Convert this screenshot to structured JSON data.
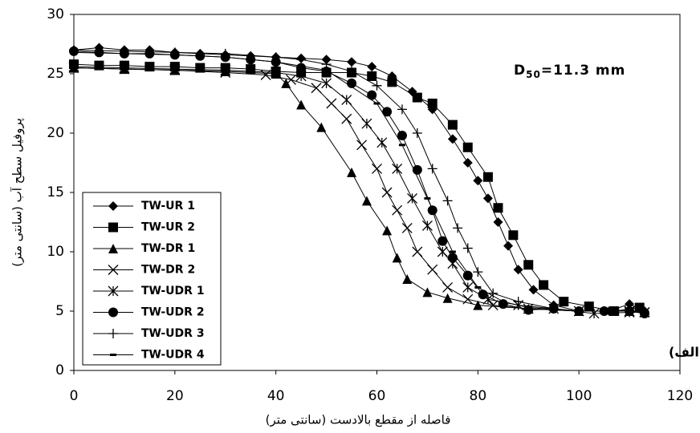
{
  "chart_data": {
    "type": "line",
    "x_label": "فاصله از مقطع بالادست (سانتی متر)",
    "y_label": "پروفیل سطح آب (سانتی متر)",
    "annotation": [
      "D",
      "50",
      "=11.3 mm"
    ],
    "panel_label": "(الف)",
    "xlim": [
      0,
      120
    ],
    "xticks": [
      0,
      20,
      40,
      60,
      80,
      100,
      120
    ],
    "ylim": [
      0,
      30
    ],
    "yticks": [
      0,
      5,
      10,
      15,
      20,
      25,
      30
    ],
    "grid": false,
    "legend": "lower left",
    "series": [
      {
        "name": "TW-UR 1",
        "color": "#000000",
        "marker": "diamond",
        "x": [
          0,
          5,
          10,
          15,
          20,
          25,
          30,
          35,
          40,
          45,
          50,
          55,
          59,
          63,
          67,
          71,
          75,
          78,
          80,
          82,
          84,
          86,
          88,
          91,
          95,
          100,
          106,
          110,
          113
        ],
        "values": [
          27,
          27.2,
          27,
          27,
          26.8,
          26.7,
          26.6,
          26.5,
          26.4,
          26.3,
          26.2,
          26,
          25.6,
          24.8,
          23.5,
          22,
          19.5,
          17.5,
          16,
          14.5,
          12.5,
          10.5,
          8.5,
          6.8,
          5.5,
          5,
          5,
          5.6,
          5
        ]
      },
      {
        "name": "TW-UR 2",
        "color": "#000000",
        "marker": "square",
        "x": [
          0,
          5,
          10,
          15,
          20,
          25,
          30,
          35,
          40,
          45,
          50,
          55,
          59,
          63,
          68,
          71,
          75,
          78,
          82,
          84,
          87,
          90,
          93,
          97,
          102,
          107,
          112
        ],
        "values": [
          25.8,
          25.7,
          25.7,
          25.6,
          25.6,
          25.5,
          25.5,
          25.4,
          25.2,
          25.1,
          25.1,
          25.1,
          24.8,
          24.3,
          23,
          22.5,
          20.7,
          18.8,
          16.3,
          13.7,
          11.4,
          8.9,
          7.2,
          5.8,
          5.4,
          5,
          5.3
        ]
      },
      {
        "name": "TW-DR 1",
        "color": "#000000",
        "marker": "triangle",
        "x": [
          0,
          10,
          20,
          30,
          40,
          42,
          45,
          49,
          55,
          58,
          62,
          64,
          66,
          70,
          74,
          80,
          90,
          100,
          110,
          113
        ],
        "values": [
          25.5,
          25.4,
          25.3,
          25.2,
          25,
          24.2,
          22.4,
          20.5,
          16.7,
          14.3,
          11.8,
          9.5,
          7.7,
          6.6,
          6.1,
          5.5,
          5.2,
          5,
          5,
          4.9
        ]
      },
      {
        "name": "TW-DR 2",
        "color": "#000000",
        "marker": "x",
        "x": [
          0,
          10,
          20,
          30,
          38,
          43,
          48,
          51,
          54,
          57,
          60,
          62,
          64,
          66,
          68,
          71,
          74,
          78,
          83,
          90,
          100,
          110,
          113
        ],
        "values": [
          25.5,
          25.4,
          25.3,
          25.1,
          24.9,
          24.5,
          23.8,
          22.5,
          21.2,
          19,
          17,
          15,
          13.5,
          12,
          10,
          8.5,
          7,
          6,
          5.5,
          5.2,
          5,
          5,
          4.9
        ]
      },
      {
        "name": "TW-UDR 1",
        "color": "#000000",
        "marker": "asterisk",
        "x": [
          0,
          10,
          20,
          30,
          40,
          45,
          50,
          54,
          58,
          61,
          64,
          67,
          70,
          73,
          75,
          78,
          82,
          88,
          95,
          103,
          110,
          113
        ],
        "values": [
          25.6,
          25.5,
          25.4,
          25.3,
          25.1,
          24.8,
          24.2,
          22.8,
          20.8,
          19.2,
          17,
          14.5,
          12.2,
          10,
          9,
          7,
          6,
          5.5,
          5.2,
          4.8,
          4.9,
          4.9
        ]
      },
      {
        "name": "TW-UDR 2",
        "color": "#000000",
        "marker": "circle",
        "x": [
          0,
          5,
          10,
          15,
          20,
          25,
          30,
          35,
          40,
          45,
          50,
          55,
          59,
          62,
          65,
          68,
          71,
          73,
          75,
          78,
          81,
          85,
          90,
          95,
          100,
          105,
          110,
          113
        ],
        "values": [
          26.9,
          26.8,
          26.7,
          26.7,
          26.6,
          26.5,
          26.4,
          26.2,
          26,
          25.5,
          25.2,
          24.2,
          23.2,
          21.8,
          19.8,
          16.9,
          13.5,
          10.9,
          9.5,
          8,
          6.4,
          5.6,
          5.1,
          5.2,
          5,
          5,
          5,
          4.8
        ]
      },
      {
        "name": "TW-UDR 3",
        "color": "#000000",
        "marker": "plus",
        "x": [
          0,
          10,
          20,
          30,
          40,
          45,
          50,
          55,
          60,
          65,
          68,
          71,
          74,
          76,
          78,
          80,
          83,
          88,
          95,
          100,
          105,
          110,
          113
        ],
        "values": [
          27,
          26.9,
          26.8,
          26.7,
          26.4,
          26.2,
          25.8,
          25.2,
          24,
          22,
          20,
          17,
          14.3,
          12,
          10.3,
          8.3,
          6.5,
          5.8,
          5.2,
          5,
          5,
          5.1,
          4.8
        ]
      },
      {
        "name": "TW-UDR 4",
        "color": "#000000",
        "marker": "dash",
        "x": [
          0,
          10,
          20,
          30,
          40,
          50,
          60,
          65,
          70,
          75,
          80,
          85,
          90,
          100,
          110,
          113
        ],
        "values": [
          26.8,
          26.7,
          26.6,
          26.4,
          26,
          25.3,
          22.5,
          19,
          14.5,
          10,
          7,
          5.8,
          5.3,
          5,
          5,
          4.8
        ]
      }
    ]
  }
}
